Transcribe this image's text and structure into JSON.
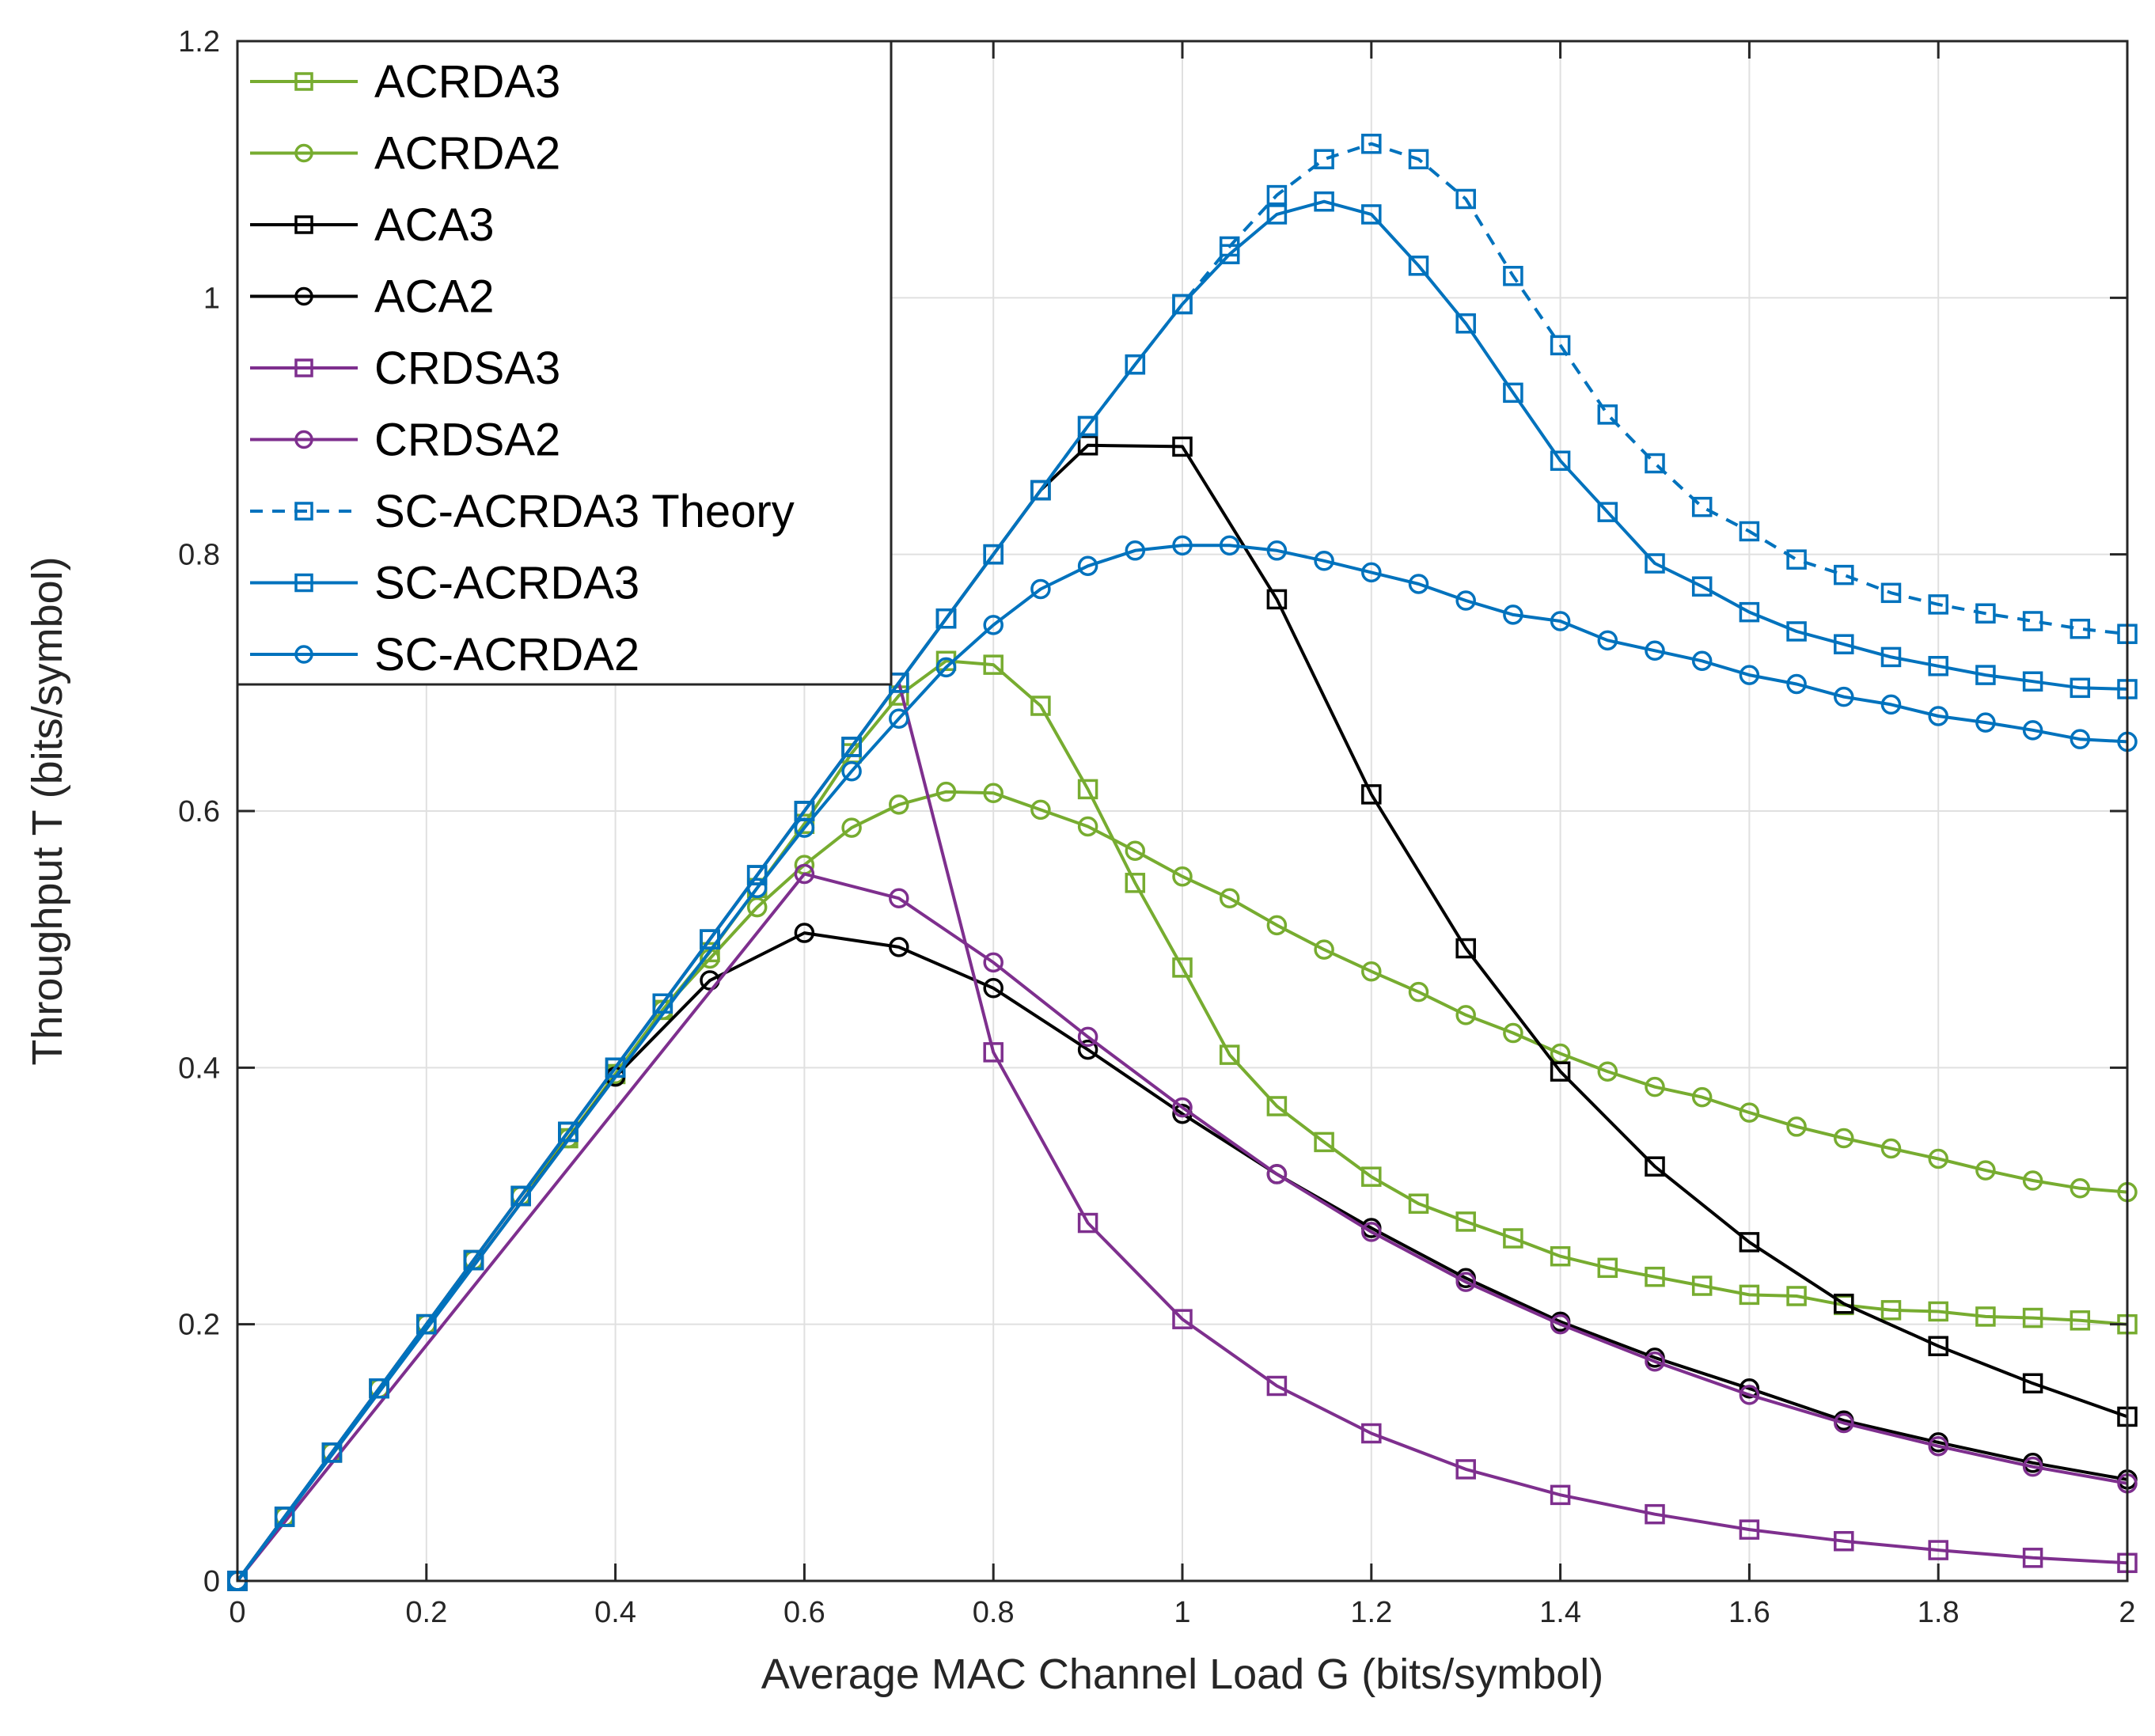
{
  "chart_data": {
    "type": "line",
    "title": "",
    "xlabel": "Average MAC Channel Load G (bits/symbol)",
    "ylabel": "Throughput T (bits/symbol)",
    "xlim": [
      0,
      2
    ],
    "ylim": [
      0,
      1.2
    ],
    "xticks": [
      "0",
      "0.2",
      "0.4",
      "0.6",
      "0.8",
      "1",
      "1.2",
      "1.4",
      "1.6",
      "1.8",
      "2"
    ],
    "yticks": [
      "0",
      "0.2",
      "0.4",
      "0.6",
      "0.8",
      "1",
      "1.2"
    ],
    "grid": true,
    "legend_position": "top-left",
    "x": [
      0,
      0.05,
      0.1,
      0.15,
      0.2,
      0.25,
      0.3,
      0.35,
      0.4,
      0.45,
      0.5,
      0.55,
      0.6,
      0.65,
      0.7,
      0.75,
      0.8,
      0.85,
      0.9,
      0.95,
      1.0,
      1.05,
      1.1,
      1.15,
      1.2,
      1.25,
      1.3,
      1.35,
      1.4,
      1.45,
      1.5,
      1.55,
      1.6,
      1.65,
      1.7,
      1.75,
      1.8,
      1.85,
      1.9,
      1.95,
      2.0
    ],
    "series": [
      {
        "name": "ACRDA3",
        "color": "#77AC30",
        "marker": "square",
        "dash": false,
        "values": [
          0,
          0.05,
          0.1,
          0.15,
          0.2,
          0.25,
          0.3,
          0.345,
          0.395,
          0.445,
          0.49,
          0.54,
          0.59,
          0.645,
          0.69,
          0.717,
          0.714,
          0.682,
          0.617,
          0.544,
          0.478,
          0.41,
          0.37,
          0.342,
          0.315,
          0.294,
          0.28,
          0.267,
          0.253,
          0.244,
          0.237,
          0.23,
          0.223,
          0.222,
          0.215,
          0.211,
          0.21,
          0.206,
          0.205,
          0.203,
          0.2
        ]
      },
      {
        "name": "ACRDA2",
        "color": "#77AC30",
        "marker": "circle",
        "dash": false,
        "values": [
          0,
          0.05,
          0.1,
          0.15,
          0.2,
          0.25,
          0.3,
          0.345,
          0.395,
          0.445,
          0.485,
          0.525,
          0.558,
          0.587,
          0.605,
          0.615,
          0.614,
          0.601,
          0.588,
          0.569,
          0.549,
          0.532,
          0.511,
          0.492,
          0.475,
          0.459,
          0.441,
          0.427,
          0.411,
          0.397,
          0.385,
          0.377,
          0.365,
          0.354,
          0.345,
          0.337,
          0.329,
          0.32,
          0.312,
          0.306,
          0.303
        ]
      },
      {
        "name": "ACA3",
        "color": "#000000",
        "marker": "square",
        "dash": false,
        "values": [
          0,
          0.05,
          0.1,
          0.15,
          0.2,
          0.25,
          0.3,
          0.35,
          0.4,
          0.45,
          0.5,
          0.55,
          0.6,
          0.65,
          0.7,
          0.75,
          0.8,
          0.85,
          0.885,
          null,
          0.884,
          null,
          0.765,
          null,
          0.613,
          null,
          0.493,
          null,
          0.397,
          null,
          0.323,
          null,
          0.264,
          null,
          0.216,
          null,
          0.183,
          null,
          0.154,
          null,
          0.128
        ]
      },
      {
        "name": "ACA2",
        "color": "#000000",
        "marker": "circle",
        "dash": false,
        "values": [
          0,
          null,
          null,
          null,
          null,
          null,
          null,
          null,
          0.393,
          null,
          0.468,
          null,
          0.505,
          null,
          0.494,
          null,
          0.462,
          null,
          0.414,
          null,
          0.364,
          null,
          0.317,
          null,
          0.275,
          null,
          0.236,
          null,
          0.202,
          null,
          0.174,
          null,
          0.15,
          null,
          0.125,
          null,
          0.108,
          null,
          0.092,
          null,
          0.079
        ]
      },
      {
        "name": "CRDSA3",
        "color": "#7E2F8E",
        "marker": "square",
        "dash": false,
        "values": [
          0,
          null,
          null,
          null,
          null,
          null,
          null,
          null,
          null,
          null,
          null,
          null,
          null,
          null,
          0.7,
          null,
          0.412,
          null,
          0.279,
          null,
          0.204,
          null,
          0.152,
          null,
          0.115,
          null,
          0.087,
          null,
          0.067,
          null,
          0.052,
          null,
          0.04,
          null,
          0.031,
          null,
          0.024,
          null,
          0.018,
          null,
          0.014
        ]
      },
      {
        "name": "CRDSA2",
        "color": "#7E2F8E",
        "marker": "circle",
        "dash": false,
        "values": [
          0,
          null,
          null,
          null,
          null,
          null,
          null,
          null,
          null,
          null,
          null,
          null,
          0.551,
          null,
          0.532,
          null,
          0.482,
          null,
          0.424,
          null,
          0.369,
          null,
          0.317,
          null,
          0.272,
          null,
          0.233,
          null,
          0.2,
          null,
          0.171,
          null,
          0.145,
          null,
          0.123,
          null,
          0.105,
          null,
          0.089,
          null,
          0.076
        ]
      },
      {
        "name": "SC-ACRDA3 Theory",
        "color": "#0072BD",
        "marker": "square",
        "dash": true,
        "values": [
          0,
          0.05,
          0.1,
          0.15,
          0.2,
          0.25,
          0.3,
          0.35,
          0.4,
          0.45,
          0.5,
          0.55,
          0.6,
          0.65,
          0.7,
          0.75,
          0.8,
          0.85,
          0.9,
          0.948,
          0.995,
          1.04,
          1.08,
          1.108,
          1.12,
          1.108,
          1.077,
          1.017,
          0.963,
          0.909,
          0.871,
          0.837,
          0.818,
          0.796,
          0.784,
          0.77,
          0.761,
          0.754,
          0.748,
          0.742,
          0.738
        ]
      },
      {
        "name": "SC-ACRDA3",
        "color": "#0072BD",
        "marker": "square",
        "dash": false,
        "values": [
          0,
          0.05,
          0.1,
          0.15,
          0.2,
          0.25,
          0.3,
          0.35,
          0.4,
          0.45,
          0.5,
          0.55,
          0.6,
          0.65,
          0.7,
          0.75,
          0.8,
          0.85,
          0.9,
          0.948,
          0.995,
          1.034,
          1.065,
          1.075,
          1.065,
          1.025,
          0.98,
          0.926,
          0.873,
          0.833,
          0.793,
          0.775,
          0.755,
          0.74,
          0.73,
          0.72,
          0.713,
          0.706,
          0.701,
          0.696,
          0.695
        ]
      },
      {
        "name": "SC-ACRDA2",
        "color": "#0072BD",
        "marker": "circle",
        "dash": false,
        "values": [
          0,
          null,
          null,
          null,
          null,
          null,
          null,
          null,
          null,
          null,
          null,
          0.54,
          0.587,
          0.631,
          0.672,
          0.712,
          0.745,
          0.773,
          0.791,
          0.803,
          0.807,
          0.807,
          0.803,
          0.795,
          0.786,
          0.777,
          0.764,
          0.753,
          0.748,
          0.733,
          0.725,
          0.717,
          0.706,
          0.699,
          0.689,
          0.683,
          0.674,
          0.669,
          0.663,
          0.656,
          0.654
        ]
      }
    ]
  }
}
